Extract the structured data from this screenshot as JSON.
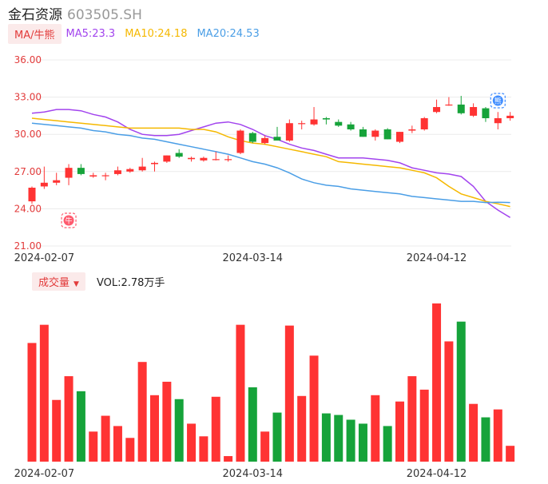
{
  "header": {
    "name": "金石资源",
    "code": "603505.SH"
  },
  "legend": {
    "tag": "MA/牛熊",
    "items": [
      {
        "label": "MA5:23.3",
        "color": "#a244ee"
      },
      {
        "label": "MA10:24.18",
        "color": "#f5b800"
      },
      {
        "label": "MA20:24.53",
        "color": "#4a9ee6"
      }
    ]
  },
  "volume_panel": {
    "tag": "成交量",
    "text": "VOL:2.78万手"
  },
  "colors": {
    "up": "#ff3333",
    "down": "#16a33a",
    "axis": "#e23b3b",
    "bull_marker": "#ff5a6e",
    "bear_marker": "#3d8bff"
  },
  "markers": {
    "bull_icon": "牛",
    "bear_icon": "熊"
  },
  "chart_data": [
    {
      "type": "candlestick",
      "ylim": [
        21.0,
        36.0
      ],
      "y_ticks": [
        "36.00",
        "33.00",
        "30.00",
        "27.00",
        "24.00",
        "21.00"
      ],
      "x_ticks": [
        {
          "index": 1,
          "label": "2024-02-07"
        },
        {
          "index": 18,
          "label": "2024-03-14"
        },
        {
          "index": 33,
          "label": "2024-04-12"
        }
      ],
      "candles": [
        {
          "o": 24.6,
          "h": 25.8,
          "l": 24.4,
          "c": 25.7
        },
        {
          "o": 25.8,
          "h": 27.4,
          "l": 25.6,
          "c": 26.1
        },
        {
          "o": 26.1,
          "h": 26.9,
          "l": 25.9,
          "c": 26.3
        },
        {
          "o": 26.5,
          "h": 27.6,
          "l": 25.9,
          "c": 27.3
        },
        {
          "o": 27.3,
          "h": 27.6,
          "l": 26.7,
          "c": 26.8
        },
        {
          "o": 26.6,
          "h": 26.9,
          "l": 26.5,
          "c": 26.7
        },
        {
          "o": 26.7,
          "h": 26.9,
          "l": 26.3,
          "c": 26.7
        },
        {
          "o": 26.8,
          "h": 27.4,
          "l": 26.7,
          "c": 27.1
        },
        {
          "o": 27.0,
          "h": 27.3,
          "l": 26.9,
          "c": 27.2
        },
        {
          "o": 27.1,
          "h": 28.1,
          "l": 27.0,
          "c": 27.4
        },
        {
          "o": 27.6,
          "h": 27.8,
          "l": 27.0,
          "c": 27.7
        },
        {
          "o": 27.8,
          "h": 28.3,
          "l": 27.7,
          "c": 28.3
        },
        {
          "o": 28.5,
          "h": 28.8,
          "l": 28.1,
          "c": 28.2
        },
        {
          "o": 28.0,
          "h": 28.2,
          "l": 27.8,
          "c": 28.1
        },
        {
          "o": 27.9,
          "h": 28.2,
          "l": 27.8,
          "c": 28.1
        },
        {
          "o": 28.0,
          "h": 28.6,
          "l": 27.9,
          "c": 28.0
        },
        {
          "o": 28.0,
          "h": 28.3,
          "l": 27.8,
          "c": 28.0
        },
        {
          "o": 28.5,
          "h": 30.4,
          "l": 28.4,
          "c": 30.3
        },
        {
          "o": 30.1,
          "h": 30.2,
          "l": 29.3,
          "c": 29.4
        },
        {
          "o": 29.3,
          "h": 29.9,
          "l": 29.2,
          "c": 29.7
        },
        {
          "o": 29.8,
          "h": 30.6,
          "l": 29.5,
          "c": 29.5
        },
        {
          "o": 29.5,
          "h": 31.2,
          "l": 29.4,
          "c": 30.9
        },
        {
          "o": 30.9,
          "h": 31.1,
          "l": 30.4,
          "c": 30.9
        },
        {
          "o": 30.8,
          "h": 32.2,
          "l": 30.7,
          "c": 31.2
        },
        {
          "o": 31.3,
          "h": 31.4,
          "l": 30.8,
          "c": 31.2
        },
        {
          "o": 31.0,
          "h": 31.2,
          "l": 30.6,
          "c": 30.7
        },
        {
          "o": 30.8,
          "h": 31.0,
          "l": 30.3,
          "c": 30.4
        },
        {
          "o": 30.4,
          "h": 30.6,
          "l": 29.8,
          "c": 29.8
        },
        {
          "o": 29.8,
          "h": 30.4,
          "l": 29.5,
          "c": 30.3
        },
        {
          "o": 30.4,
          "h": 30.5,
          "l": 29.6,
          "c": 29.6
        },
        {
          "o": 29.4,
          "h": 30.2,
          "l": 29.3,
          "c": 30.2
        },
        {
          "o": 30.3,
          "h": 30.7,
          "l": 30.1,
          "c": 30.4
        },
        {
          "o": 30.4,
          "h": 31.4,
          "l": 30.3,
          "c": 31.3
        },
        {
          "o": 31.8,
          "h": 32.8,
          "l": 31.7,
          "c": 32.2
        },
        {
          "o": 32.4,
          "h": 33.0,
          "l": 32.3,
          "c": 32.4
        },
        {
          "o": 32.4,
          "h": 33.1,
          "l": 31.6,
          "c": 31.7
        },
        {
          "o": 31.5,
          "h": 32.5,
          "l": 31.4,
          "c": 32.2
        },
        {
          "o": 32.1,
          "h": 32.2,
          "l": 31.0,
          "c": 31.3
        },
        {
          "o": 30.9,
          "h": 31.8,
          "l": 30.4,
          "c": 31.3
        },
        {
          "o": 31.3,
          "h": 31.8,
          "l": 31.1,
          "c": 31.5
        }
      ],
      "ma_lines": [
        {
          "label": "MA5",
          "color": "#a244ee",
          "values": [
            31.7,
            31.8,
            32.0,
            32.0,
            31.9,
            31.6,
            31.4,
            31.0,
            30.4,
            30.0,
            29.9,
            29.9,
            30.0,
            30.3,
            30.6,
            30.9,
            31.0,
            30.8,
            30.4,
            29.9,
            29.6,
            29.2,
            28.9,
            28.7,
            28.4,
            28.1,
            28.1,
            28.1,
            28.0,
            27.9,
            27.7,
            27.3,
            27.1,
            26.9,
            26.8,
            26.6,
            25.8,
            24.6,
            23.9,
            23.3
          ]
        },
        {
          "label": "MA10",
          "color": "#f5b800",
          "values": [
            31.3,
            31.2,
            31.1,
            31.0,
            30.9,
            30.8,
            30.7,
            30.6,
            30.5,
            30.5,
            30.5,
            30.5,
            30.5,
            30.4,
            30.4,
            30.2,
            29.8,
            29.5,
            29.3,
            29.2,
            29.0,
            28.8,
            28.6,
            28.4,
            28.2,
            27.8,
            27.7,
            27.6,
            27.5,
            27.4,
            27.3,
            27.1,
            26.9,
            26.5,
            25.8,
            25.2,
            24.9,
            24.6,
            24.4,
            24.18
          ]
        },
        {
          "label": "MA20",
          "color": "#4a9ee6",
          "values": [
            30.9,
            30.8,
            30.7,
            30.6,
            30.5,
            30.3,
            30.2,
            30.0,
            29.9,
            29.7,
            29.6,
            29.4,
            29.2,
            29.0,
            28.8,
            28.6,
            28.4,
            28.1,
            27.8,
            27.6,
            27.3,
            26.9,
            26.4,
            26.1,
            25.9,
            25.8,
            25.6,
            25.5,
            25.4,
            25.3,
            25.2,
            25.0,
            24.9,
            24.8,
            24.7,
            24.6,
            24.6,
            24.5,
            24.53,
            24.5
          ]
        }
      ]
    },
    {
      "type": "bar",
      "title": "成交量",
      "ylim": [
        0,
        210
      ],
      "values": [
        150,
        173,
        78,
        108,
        89,
        38,
        58,
        45,
        30,
        126,
        84,
        101,
        79,
        48,
        32,
        82,
        7,
        173,
        94,
        38,
        62,
        172,
        83,
        134,
        61,
        59,
        53,
        48,
        84,
        45,
        76,
        108,
        91,
        200,
        152,
        177,
        73,
        56,
        66,
        20
      ],
      "x_ticks": [
        {
          "index": 1,
          "label": "2024-02-07"
        },
        {
          "index": 18,
          "label": "2024-03-14"
        },
        {
          "index": 33,
          "label": "2024-04-12"
        }
      ]
    }
  ]
}
